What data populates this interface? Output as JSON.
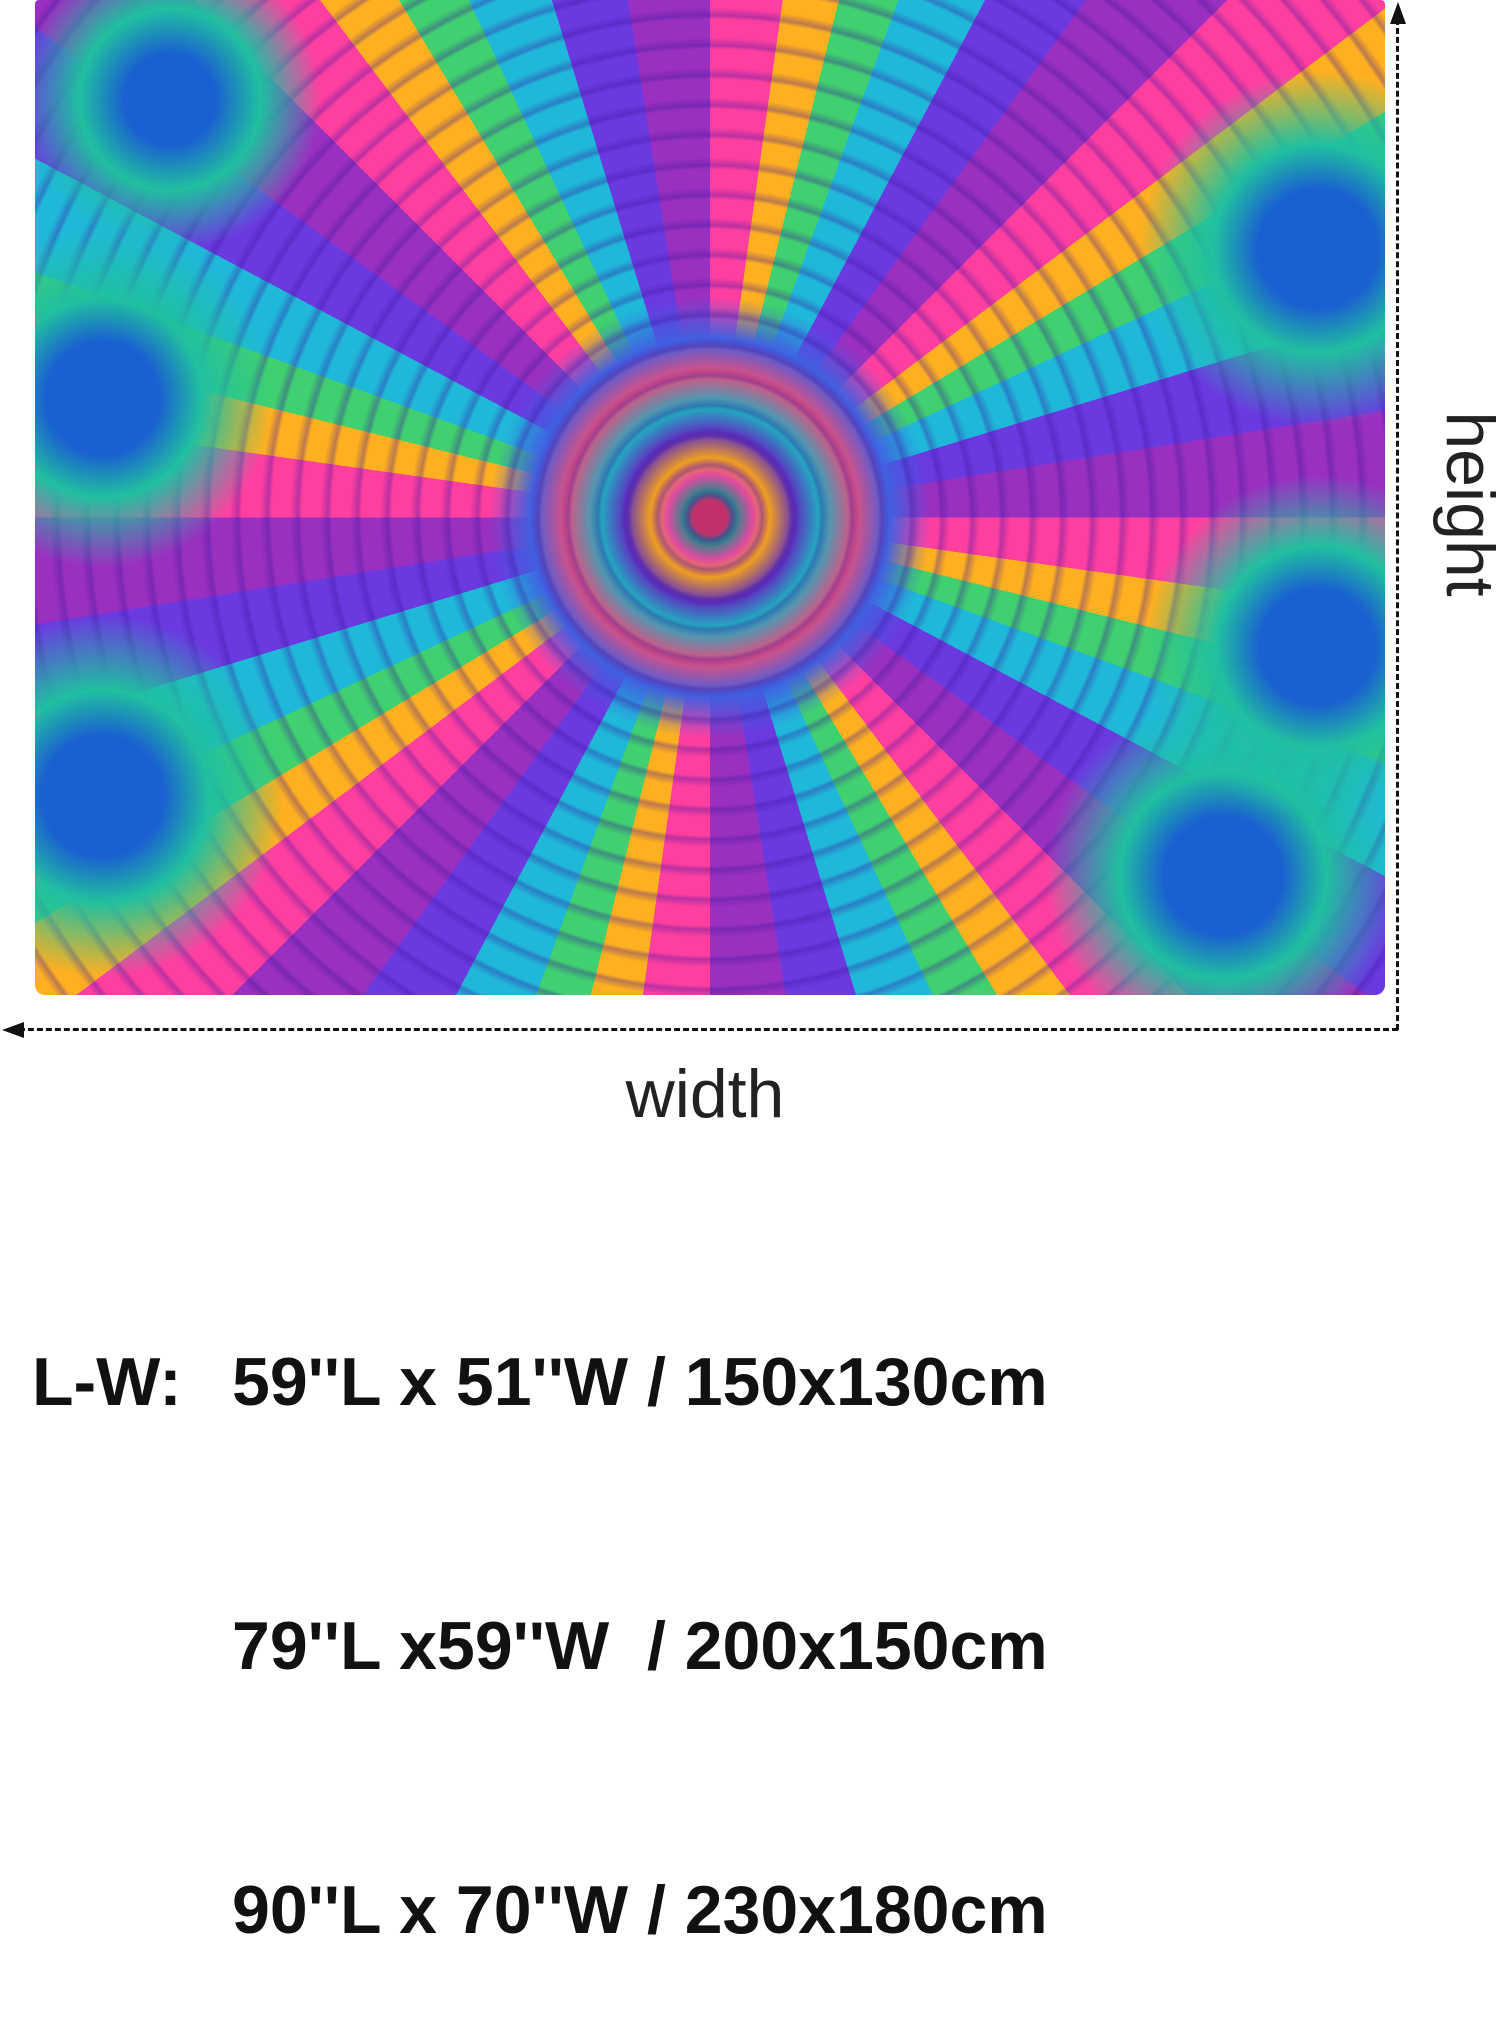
{
  "image": {
    "subject": "psychedelic-mandala-tapestry",
    "colors": [
      "#ff3fa0",
      "#ffb020",
      "#40d070",
      "#20b8d8",
      "#6a3ae0",
      "#9a30c0"
    ]
  },
  "dimensions": {
    "height_label": "height",
    "width_label": "width",
    "size_prefix": "L-W:",
    "sizes": [
      "59''L x 51''W / 150x130cm",
      "79''L x59''W  / 200x150cm",
      "90''L x 70''W / 230x180cm"
    ]
  }
}
